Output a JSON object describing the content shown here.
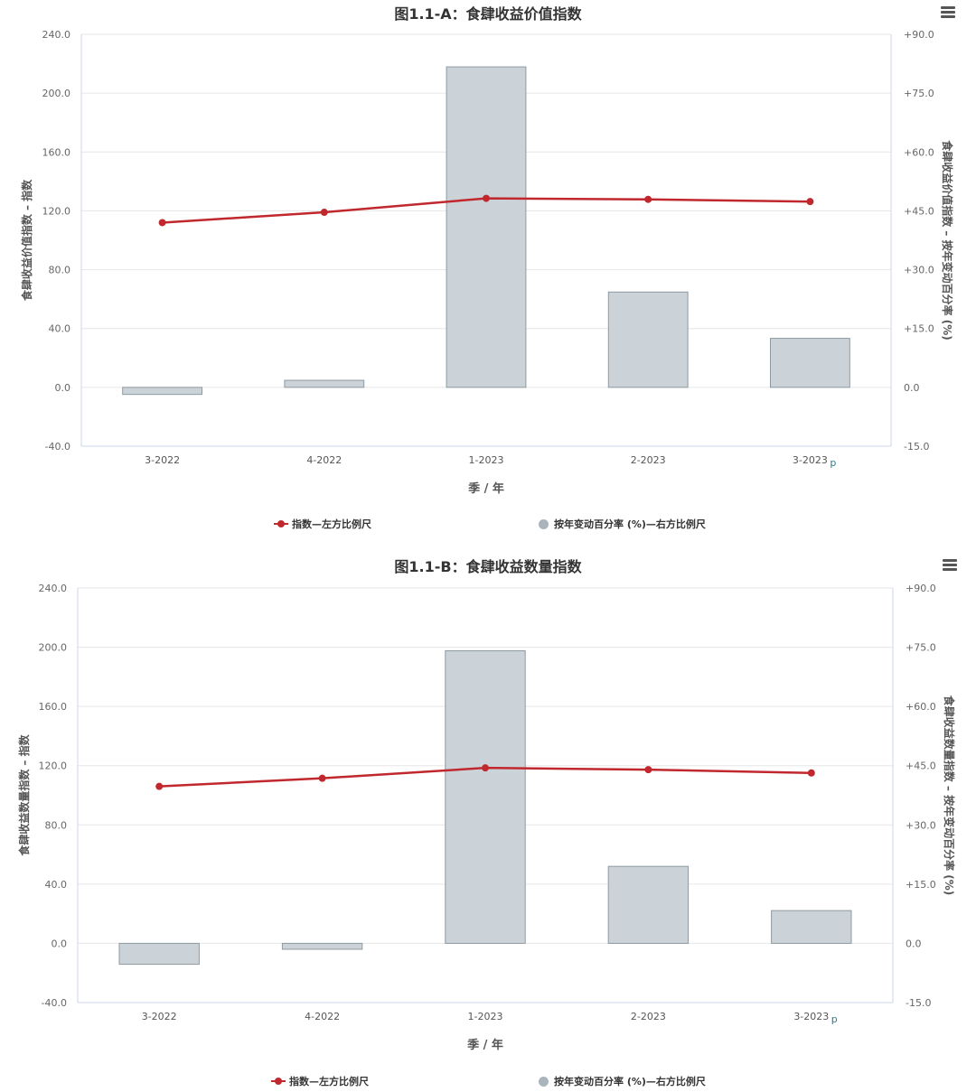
{
  "charts": [
    {
      "title": "图1.1-A：食肆收益价值指数",
      "ylabel_left": "食肆收益价值指数 – 指数",
      "ylabel_right": "食肆收益价值指数 – 按年变动百分率 (%)",
      "xlabel": "季 / 年",
      "categories": [
        "3-2022",
        "4-2022",
        "1-2023",
        "2-2023",
        "3-2023"
      ],
      "provisional_mark": "p",
      "left_ticks": [
        "240.0",
        "200.0",
        "160.0",
        "120.0",
        "80.0",
        "40.0",
        "0.0",
        "-40.0"
      ],
      "right_ticks": [
        "+90.0",
        "+75.0",
        "+60.0",
        "+45.0",
        "+30.0",
        "+15.0",
        "0.0",
        "-15.0"
      ],
      "legend": {
        "line": "指数—左方比例尺",
        "bar": "按年变动百分率 (%)—右方比例尺"
      },
      "menu_icon": "hamburger-menu-icon"
    },
    {
      "title": "图1.1-B：食肆收益数量指数",
      "ylabel_left": "食肆收益数量指数 – 指数",
      "ylabel_right": "食肆收益数量指数 – 按年变动百分率 (%)",
      "xlabel": "季 / 年",
      "categories": [
        "3-2022",
        "4-2022",
        "1-2023",
        "2-2023",
        "3-2023"
      ],
      "provisional_mark": "p",
      "left_ticks": [
        "240.0",
        "200.0",
        "160.0",
        "120.0",
        "80.0",
        "40.0",
        "0.0",
        "-40.0"
      ],
      "right_ticks": [
        "+90.0",
        "+75.0",
        "+60.0",
        "+45.0",
        "+30.0",
        "+15.0",
        "0.0",
        "-15.0"
      ],
      "legend": {
        "line": "指数—左方比例尺",
        "bar": "按年变动百分率 (%)—右方比例尺"
      },
      "menu_icon": "hamburger-menu-icon"
    }
  ],
  "colors": {
    "line": "#c0282d",
    "bar_fill": "#cbd3d9",
    "bar_stroke": "#8e9aa1",
    "grid": "#e6e6e6",
    "axis": "#ccd6eb"
  },
  "chart_data": [
    {
      "type": "bar+line",
      "title": "图1.1-A：食肆收益价值指数",
      "categories": [
        "3-2022",
        "4-2022",
        "1-2023",
        "2-2023",
        "3-2023"
      ],
      "series": [
        {
          "name": "指数—左方比例尺",
          "type": "line",
          "axis": "left",
          "values": [
            112.0,
            119.0,
            128.5,
            127.8,
            126.3
          ]
        },
        {
          "name": "按年变动百分率 (%)—右方比例尺",
          "type": "bar",
          "axis": "right",
          "values": [
            -1.8,
            1.8,
            81.7,
            24.3,
            12.5
          ]
        }
      ],
      "xlabel": "季 / 年",
      "ylabel_left": "食肆收益价值指数 – 指数",
      "ylabel_right": "食肆收益价值指数 – 按年变动百分率 (%)",
      "ylim_left": [
        -40,
        240
      ],
      "ylim_right": [
        -15,
        90
      ],
      "grid": true,
      "legend": "bottom-center"
    },
    {
      "type": "bar+line",
      "title": "图1.1-B：食肆收益数量指数",
      "categories": [
        "3-2022",
        "4-2022",
        "1-2023",
        "2-2023",
        "3-2023"
      ],
      "series": [
        {
          "name": "指数—左方比例尺",
          "type": "line",
          "axis": "left",
          "values": [
            106.0,
            111.5,
            118.5,
            117.3,
            115.1
          ]
        },
        {
          "name": "按年变动百分率 (%)—右方比例尺",
          "type": "bar",
          "axis": "right",
          "values": [
            -5.3,
            -1.5,
            74.1,
            19.5,
            8.3
          ]
        }
      ],
      "xlabel": "季 / 年",
      "ylabel_left": "食肆收益数量指数 – 指数",
      "ylabel_right": "食肆收益数量指数 – 按年变动百分率 (%)",
      "ylim_left": [
        -40,
        240
      ],
      "ylim_right": [
        -15,
        90
      ],
      "grid": true,
      "legend": "bottom-center"
    }
  ]
}
